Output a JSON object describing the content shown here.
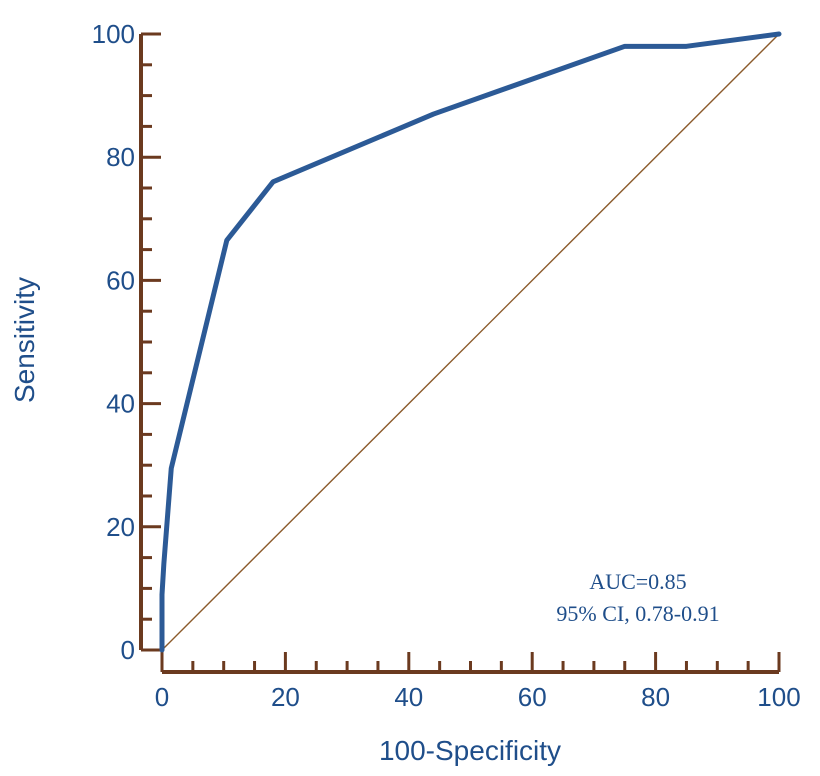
{
  "chart_data": {
    "type": "line",
    "xlabel": "100-Specificity",
    "ylabel": "Sensitivity",
    "xlim": [
      0,
      100
    ],
    "ylim": [
      0,
      100
    ],
    "x_ticks": [
      0,
      20,
      40,
      60,
      80,
      100
    ],
    "y_ticks": [
      0,
      20,
      40,
      60,
      80,
      100
    ],
    "x_tick_labels": [
      "0",
      "20",
      "40",
      "60",
      "80",
      "100"
    ],
    "y_tick_labels": [
      "0",
      "20",
      "40",
      "60",
      "80",
      "100"
    ],
    "grid": false,
    "series": [
      {
        "color": "#2c5a96",
        "x": [
          0,
          0,
          0.3,
          1.5,
          10.5,
          18,
          44,
          75,
          85,
          100
        ],
        "y": [
          0,
          9,
          14,
          29.5,
          66.5,
          76,
          87,
          98,
          98,
          100
        ]
      },
      {
        "color": "#8b5a2b",
        "x": [
          0,
          100
        ],
        "y": [
          0,
          100
        ]
      }
    ],
    "annotations": [
      "AUC=0.85",
      "95% CI, 0.78-0.91"
    ],
    "axis_color": "#6b3a1f"
  }
}
